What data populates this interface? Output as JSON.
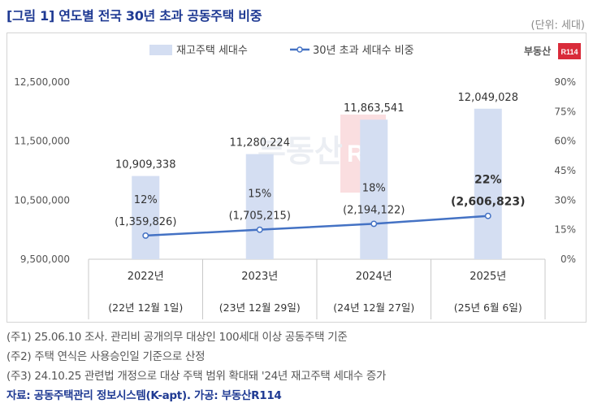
{
  "header": {
    "title": "[그림 1] 연도별 전국 30년 초과 공동주택 비중",
    "unit": "(단위: 세대)"
  },
  "colors": {
    "bar": "#d4def2",
    "line": "#4472c4",
    "title": "#1f3a93",
    "logo_red": "#d92b3a"
  },
  "logo": {
    "text": "부동산",
    "badge": "R114"
  },
  "chart_data": {
    "type": "bar",
    "title": "[그림 1] 연도별 전국 30년 초과 공동주택 비중",
    "categories": [
      "2022년",
      "2023년",
      "2024년",
      "2025년"
    ],
    "subcategories": [
      "(22년 12월 1일)",
      "(23년 12월 29일)",
      "(24년 12월 27일)",
      "(25년 6월 6일)"
    ],
    "legend": {
      "bar_label": "재고주택 세대수",
      "line_label": "30년 초과 세대수 비중",
      "position": "top"
    },
    "series": [
      {
        "name": "재고주택 세대수",
        "kind": "bar",
        "axis": "left",
        "values": [
          10909338,
          11280224,
          11863541,
          12049028
        ],
        "labels": [
          "10,909,338",
          "11,280,224",
          "11,863,541",
          "12,049,028"
        ]
      },
      {
        "name": "30년 초과 세대수 비중",
        "kind": "line",
        "axis": "right",
        "values": [
          12,
          15,
          18,
          22
        ],
        "pct_labels": [
          "12%",
          "15%",
          "18%",
          "22%"
        ],
        "count_labels": [
          "(1,359,826)",
          "(1,705,215)",
          "(2,194,122)",
          "(2,606,823)"
        ],
        "highlight_last": true
      }
    ],
    "y_left": {
      "range": [
        9500000,
        12500000
      ],
      "ticks": [
        9500000,
        10500000,
        11500000,
        12500000
      ],
      "tick_labels": [
        "9,500,000",
        "10,500,000",
        "11,500,000",
        "12,500,000"
      ]
    },
    "y_right": {
      "range": [
        0,
        90
      ],
      "ticks": [
        0,
        15,
        30,
        45,
        60,
        75,
        90
      ],
      "tick_labels": [
        "0%",
        "15%",
        "30%",
        "45%",
        "60%",
        "75%",
        "90%"
      ]
    }
  },
  "footnotes": [
    "(주1) 25.06.10 조사. 관리비 공개의무 대상인 100세대 이상 공동주택 기준",
    "(주2) 주택 연식은 사용승인일 기준으로 산정",
    "(주3) 24.10.25 관련법 개정으로 대상 주택 범위 확대돼 '24년 재고주택 세대수 증가"
  ],
  "source": "자료: 공동주택관리 정보시스템(K-apt). 가공: 부동산R114"
}
